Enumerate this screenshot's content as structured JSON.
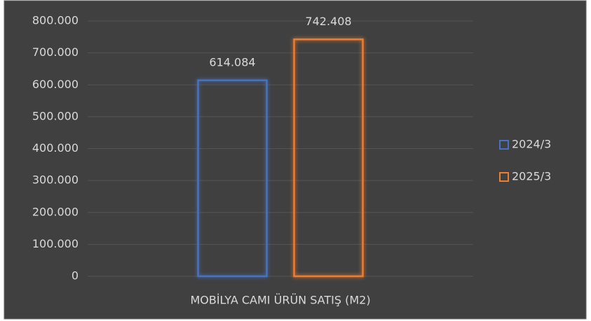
{
  "chart_data": {
    "type": "bar",
    "categories": [
      "MOBİLYA CAMI ÜRÜN SATIŞ (M2)"
    ],
    "series": [
      {
        "name": "2024/3",
        "color": "#4472c4",
        "values": [
          614084
        ],
        "value_labels": [
          "614.084"
        ]
      },
      {
        "name": "2025/3",
        "color": "#ed7d31",
        "values": [
          742408
        ],
        "value_labels": [
          "742.408"
        ]
      }
    ],
    "ylim": [
      0,
      800000
    ],
    "yticks": [
      0,
      {
        "value": 100000,
        "label": "100.000"
      },
      {
        "value": 200000,
        "label": "200.000"
      },
      {
        "value": 300000,
        "label": "300.000"
      },
      {
        "value": 400000,
        "label": "400.000"
      },
      {
        "value": 500000,
        "label": "500.000"
      },
      {
        "value": 600000,
        "label": "600.000"
      },
      {
        "value": 700000,
        "label": "700.000"
      },
      {
        "value": 800000,
        "label": "800.000"
      }
    ],
    "grid": true,
    "legend": "right"
  }
}
